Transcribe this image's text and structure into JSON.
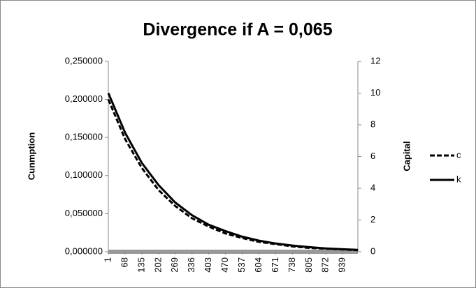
{
  "chart_data": {
    "type": "line",
    "title": "Divergence if A = 0,065",
    "y_label": "Cunmption",
    "y2_label": "Capital",
    "x": [
      1,
      68,
      135,
      202,
      269,
      336,
      403,
      470,
      537,
      604,
      671,
      738,
      805,
      872,
      939,
      1000
    ],
    "xlim": [
      1,
      1000
    ],
    "xticks": [
      1,
      68,
      135,
      202,
      269,
      336,
      403,
      470,
      537,
      604,
      671,
      738,
      805,
      872,
      939
    ],
    "ylim": [
      0,
      0.25
    ],
    "yticks": [
      {
        "value": 0,
        "label": "0,000000"
      },
      {
        "value": 0.05,
        "label": "0,050000"
      },
      {
        "value": 0.1,
        "label": "0,100000"
      },
      {
        "value": 0.15,
        "label": "0,150000"
      },
      {
        "value": 0.2,
        "label": "0,200000"
      },
      {
        "value": 0.25,
        "label": "0,250000"
      }
    ],
    "y2lim": [
      0,
      12
    ],
    "y2ticks": [
      0,
      2,
      4,
      6,
      8,
      10,
      12
    ],
    "legend": "right",
    "series": [
      {
        "name": "c",
        "color": "#000000",
        "style": "dashed",
        "values": [
          0.2,
          0.148,
          0.11,
          0.081,
          0.06,
          0.044,
          0.033,
          0.024,
          0.018,
          0.013,
          0.01,
          0.007,
          0.005,
          0.004,
          0.003,
          0.002
        ]
      },
      {
        "name": "k",
        "color": "#000000",
        "style": "solid",
        "axis": "y2",
        "values": [
          10,
          7.5,
          5.6,
          4.2,
          3.1,
          2.3,
          1.7,
          1.3,
          0.95,
          0.7,
          0.52,
          0.39,
          0.29,
          0.21,
          0.16,
          0.12
        ]
      }
    ]
  }
}
